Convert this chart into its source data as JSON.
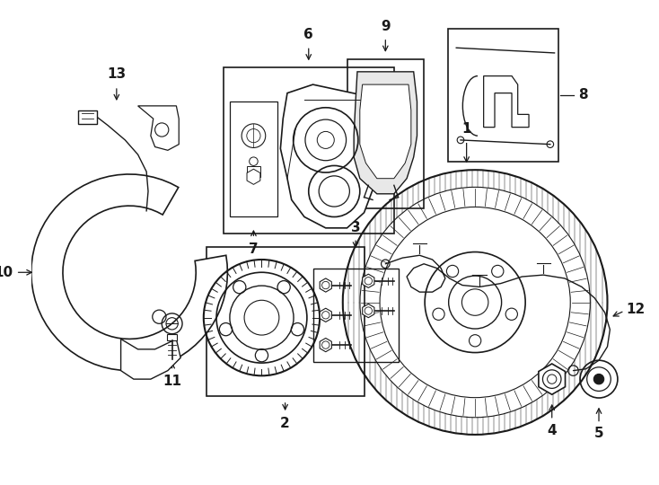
{
  "background_color": "#ffffff",
  "line_color": "#1a1a1a",
  "fig_width": 7.34,
  "fig_height": 5.4,
  "dpi": 100
}
